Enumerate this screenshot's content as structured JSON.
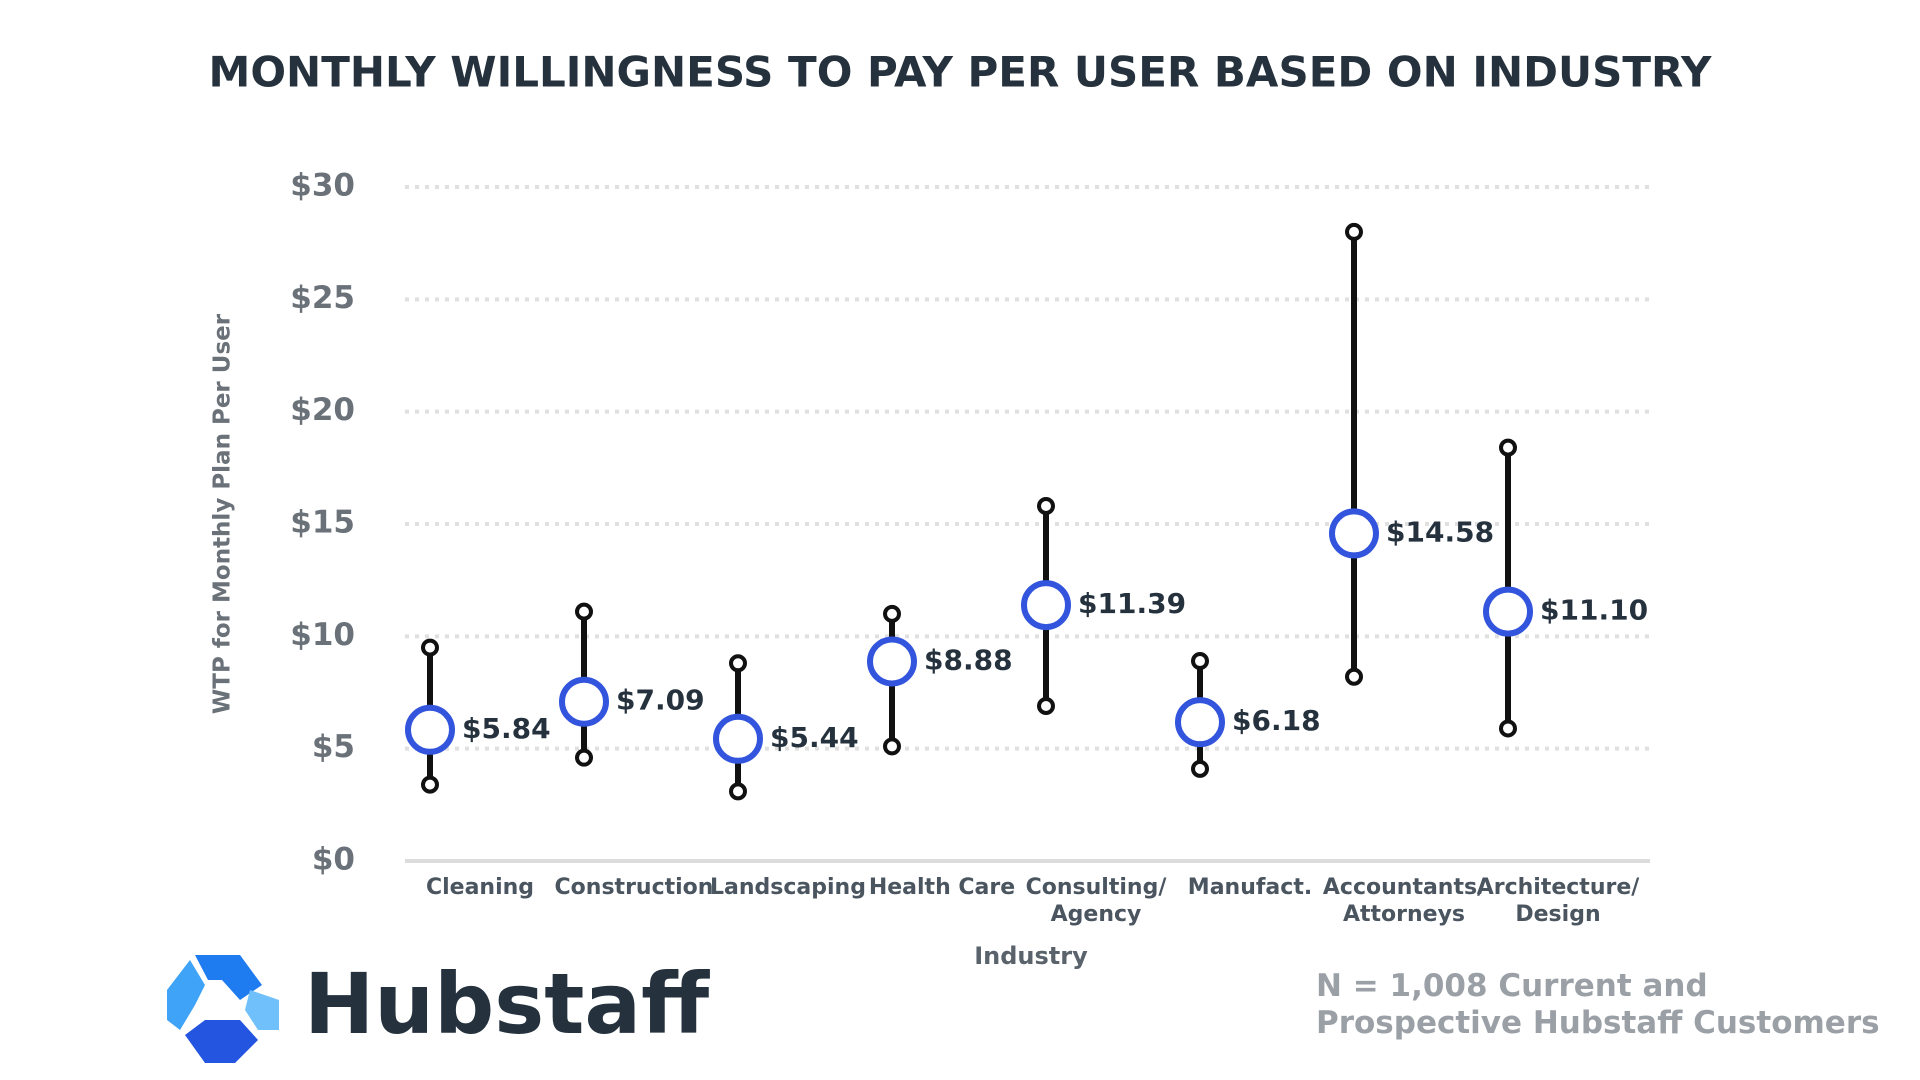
{
  "chart_data": {
    "type": "range",
    "title": "MONTHLY WILLINGNESS TO PAY PER USER BASED ON INDUSTRY",
    "x_label": "Industry",
    "y_label": "WTP for Monthly Plan Per User",
    "categories": [
      "Cleaning",
      "Construction",
      "Landscaping",
      "Health Care",
      "Consulting/\nAgency",
      "Manufact.",
      "Accountants/\nAttorneys",
      "Architecture/\nDesign"
    ],
    "low": [
      3.4,
      4.6,
      3.1,
      5.1,
      6.9,
      4.1,
      8.2,
      5.9
    ],
    "values": [
      5.84,
      7.09,
      5.44,
      8.88,
      11.39,
      6.18,
      14.58,
      11.1
    ],
    "value_labels": [
      "$5.84",
      "$7.09",
      "$5.44",
      "$8.88",
      "$11.39",
      "$6.18",
      "$14.58",
      "$11.10"
    ],
    "high": [
      9.5,
      11.1,
      8.8,
      11.0,
      15.8,
      8.9,
      28.0,
      18.4
    ],
    "line_color": "#111111",
    "marker_color": "#3355dd",
    "ylim": [
      0,
      30
    ],
    "yticks": [
      {
        "value": 0,
        "label": "$0"
      },
      {
        "value": 5,
        "label": "$5"
      },
      {
        "value": 10,
        "label": "$10"
      },
      {
        "value": 15,
        "label": "$15"
      },
      {
        "value": 20,
        "label": "$20"
      },
      {
        "value": 25,
        "label": "$25"
      },
      {
        "value": 30,
        "label": "$30"
      }
    ],
    "grid": true
  },
  "logo": "Hubstaff",
  "footnote": "N = 1,008 Current and\nProspective Hubstaff Customers"
}
